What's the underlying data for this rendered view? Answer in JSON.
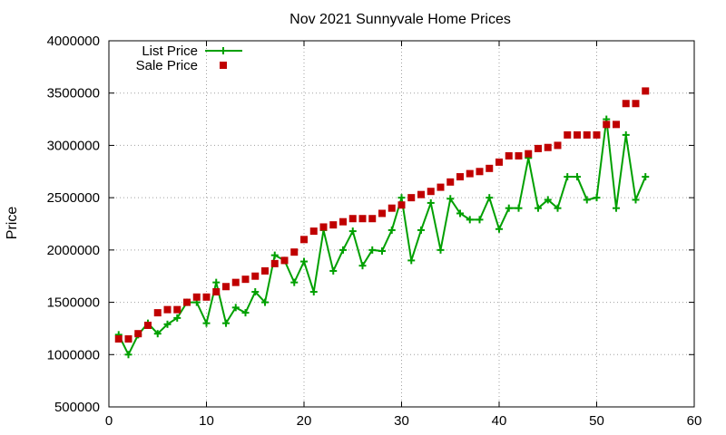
{
  "chart_data": {
    "type": "line",
    "title": "Nov 2021 Sunnyvale Home Prices",
    "xlabel": "",
    "ylabel": "Price",
    "xlim": [
      0,
      60
    ],
    "ylim": [
      500000,
      4000000
    ],
    "x_ticks": [
      0,
      10,
      20,
      30,
      40,
      50,
      60
    ],
    "y_ticks": [
      500000,
      1000000,
      1500000,
      2000000,
      2500000,
      3000000,
      3500000,
      4000000
    ],
    "grid": true,
    "legend_position": "top-left",
    "x": [
      1,
      2,
      3,
      4,
      5,
      6,
      7,
      8,
      9,
      10,
      11,
      12,
      13,
      14,
      15,
      16,
      17,
      18,
      19,
      20,
      21,
      22,
      23,
      24,
      25,
      26,
      27,
      28,
      29,
      30,
      31,
      32,
      33,
      34,
      35,
      36,
      37,
      38,
      39,
      40,
      41,
      42,
      43,
      44,
      45,
      46,
      47,
      48,
      49,
      50,
      51,
      52,
      53,
      54,
      55
    ],
    "series": [
      {
        "name": "List Price",
        "style": "line-points",
        "marker": "plus",
        "color": "#00a000",
        "values": [
          1190000,
          1000000,
          1190000,
          1300000,
          1200000,
          1290000,
          1350000,
          1500000,
          1500000,
          1300000,
          1690000,
          1300000,
          1450000,
          1400000,
          1600000,
          1500000,
          1950000,
          1900000,
          1690000,
          1890000,
          1600000,
          2190000,
          1800000,
          2000000,
          2180000,
          1850000,
          2000000,
          1990000,
          2190000,
          2500000,
          1900000,
          2190000,
          2450000,
          2000000,
          2490000,
          2350000,
          2290000,
          2290000,
          2500000,
          2200000,
          2400000,
          2400000,
          2880000,
          2400000,
          2480000,
          2400000,
          2700000,
          2700000,
          2480000,
          2500000,
          3250000,
          2400000,
          3100000,
          2480000,
          2700000
        ]
      },
      {
        "name": "Sale Price",
        "style": "points",
        "marker": "square",
        "color": "#c00000",
        "values": [
          1150000,
          1150000,
          1200000,
          1280000,
          1400000,
          1430000,
          1430000,
          1500000,
          1550000,
          1550000,
          1600000,
          1650000,
          1690000,
          1720000,
          1750000,
          1800000,
          1870000,
          1900000,
          1980000,
          2100000,
          2180000,
          2220000,
          2240000,
          2270000,
          2300000,
          2300000,
          2300000,
          2350000,
          2400000,
          2430000,
          2500000,
          2530000,
          2560000,
          2600000,
          2650000,
          2700000,
          2730000,
          2750000,
          2780000,
          2840000,
          2900000,
          2900000,
          2920000,
          2970000,
          2980000,
          3000000,
          3100000,
          3100000,
          3100000,
          3100000,
          3200000,
          3200000,
          3400000,
          3400000,
          3520000
        ]
      }
    ]
  }
}
